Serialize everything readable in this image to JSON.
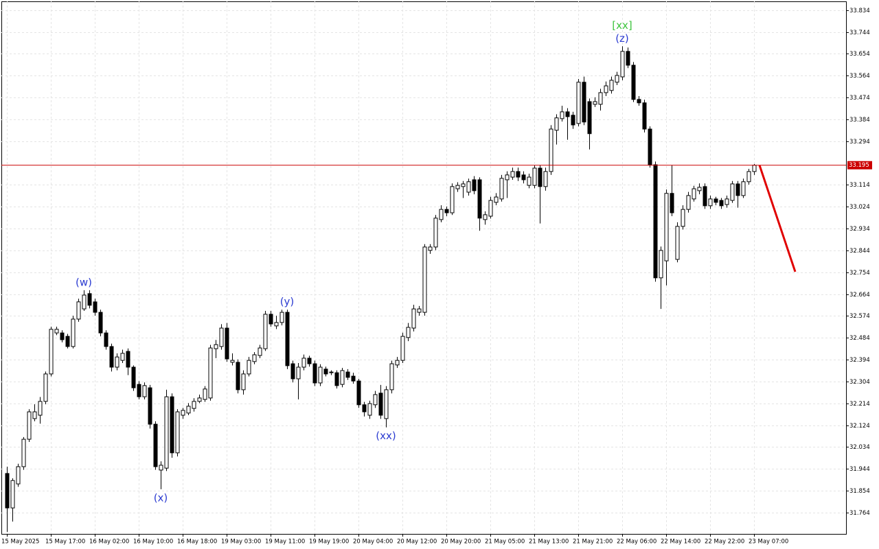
{
  "chart_data": {
    "type": "candlestick",
    "categories": [
      "15 May 2025",
      null,
      null,
      null,
      null,
      null,
      null,
      null,
      "15 May 17:00",
      null,
      null,
      null,
      null,
      null,
      null,
      null,
      "16 May 02:00",
      null,
      null,
      null,
      null,
      null,
      null,
      null,
      "16 May 10:00",
      null,
      null,
      null,
      null,
      null,
      null,
      null,
      "16 May 18:00",
      null,
      null,
      null,
      null,
      null,
      null,
      null,
      "19 May 03:00",
      null,
      null,
      null,
      null,
      null,
      null,
      null,
      "19 May 11:00",
      null,
      null,
      null,
      null,
      null,
      null,
      null,
      "19 May 19:00",
      null,
      null,
      null,
      null,
      null,
      null,
      null,
      "20 May 04:00",
      null,
      null,
      null,
      null,
      null,
      null,
      null,
      "20 May 12:00",
      null,
      null,
      null,
      null,
      null,
      null,
      null,
      "20 May 20:00",
      null,
      null,
      null,
      null,
      null,
      null,
      null,
      "21 May 05:00",
      null,
      null,
      null,
      null,
      null,
      null,
      null,
      "21 May 13:00",
      null,
      null,
      null,
      null,
      null,
      null,
      null,
      "21 May 21:00",
      null,
      null,
      null,
      null,
      null,
      null,
      null,
      "22 May 06:00",
      null,
      null,
      null,
      null,
      null,
      null,
      null,
      "22 May 14:00",
      null,
      null,
      null,
      null,
      null,
      null,
      null,
      "22 May 22:00",
      null,
      null,
      null,
      null,
      null,
      null,
      null,
      "23 May 07:00"
    ],
    "ohlc": [
      [
        31.925,
        31.953,
        31.684,
        31.783
      ],
      [
        31.783,
        31.905,
        31.727,
        31.896
      ],
      [
        31.882,
        31.965,
        31.87,
        31.953
      ],
      [
        31.953,
        32.075,
        31.94,
        32.066
      ],
      [
        32.066,
        32.19,
        32.055,
        32.179
      ],
      [
        32.151,
        32.21,
        32.14,
        32.179
      ],
      [
        32.165,
        32.24,
        32.13,
        32.222
      ],
      [
        32.222,
        32.345,
        32.21,
        32.335
      ],
      [
        32.335,
        32.53,
        32.325,
        32.519
      ],
      [
        32.504,
        32.53,
        32.495,
        32.519
      ],
      [
        32.504,
        32.515,
        32.465,
        32.476
      ],
      [
        32.49,
        32.5,
        32.44,
        32.448
      ],
      [
        32.448,
        32.575,
        32.44,
        32.561
      ],
      [
        32.561,
        32.645,
        32.55,
        32.632
      ],
      [
        32.603,
        32.68,
        32.595,
        32.66
      ],
      [
        32.666,
        32.68,
        32.605,
        32.618
      ],
      [
        32.632,
        32.645,
        32.575,
        32.589
      ],
      [
        32.589,
        32.6,
        32.49,
        32.504
      ],
      [
        32.504,
        32.515,
        32.435,
        32.448
      ],
      [
        32.448,
        32.46,
        32.345,
        32.363
      ],
      [
        32.363,
        32.42,
        32.35,
        32.405
      ],
      [
        32.391,
        32.435,
        32.38,
        32.42
      ],
      [
        32.428,
        32.44,
        32.33,
        32.363
      ],
      [
        32.363,
        32.37,
        32.265,
        32.278
      ],
      [
        32.292,
        32.305,
        32.23,
        32.241
      ],
      [
        32.241,
        32.3,
        32.23,
        32.287
      ],
      [
        32.278,
        32.29,
        32.11,
        32.128
      ],
      [
        32.128,
        32.14,
        31.94,
        31.953
      ],
      [
        31.939,
        31.975,
        31.86,
        31.959
      ],
      [
        31.947,
        32.27,
        31.935,
        32.241
      ],
      [
        32.241,
        32.255,
        31.99,
        32.01
      ],
      [
        32.01,
        32.19,
        31.995,
        32.179
      ],
      [
        32.165,
        32.195,
        32.15,
        32.185
      ],
      [
        32.174,
        32.215,
        32.165,
        32.202
      ],
      [
        32.193,
        32.235,
        32.18,
        32.222
      ],
      [
        32.222,
        32.25,
        32.215,
        32.236
      ],
      [
        32.23,
        32.285,
        32.22,
        32.273
      ],
      [
        32.236,
        32.455,
        32.225,
        32.442
      ],
      [
        32.439,
        32.475,
        32.4,
        32.456
      ],
      [
        32.448,
        32.54,
        32.435,
        32.524
      ],
      [
        32.524,
        32.545,
        32.385,
        32.397
      ],
      [
        32.383,
        32.42,
        32.37,
        32.391
      ],
      [
        32.383,
        32.395,
        32.255,
        32.27
      ],
      [
        32.27,
        32.35,
        32.25,
        32.335
      ],
      [
        32.335,
        32.405,
        32.325,
        32.391
      ],
      [
        32.386,
        32.425,
        32.375,
        32.414
      ],
      [
        32.411,
        32.455,
        32.4,
        32.442
      ],
      [
        32.439,
        32.595,
        32.43,
        32.581
      ],
      [
        32.581,
        32.595,
        32.53,
        32.541
      ],
      [
        32.533,
        32.575,
        32.52,
        32.547
      ],
      [
        32.547,
        32.6,
        32.535,
        32.589
      ],
      [
        32.589,
        32.6,
        32.355,
        32.369
      ],
      [
        32.377,
        32.39,
        32.3,
        32.315
      ],
      [
        32.315,
        32.38,
        32.23,
        32.363
      ],
      [
        32.363,
        32.415,
        32.35,
        32.4
      ],
      [
        32.4,
        32.41,
        32.365,
        32.377
      ],
      [
        32.377,
        32.39,
        32.285,
        32.298
      ],
      [
        32.298,
        32.375,
        32.285,
        32.363
      ],
      [
        32.355,
        32.365,
        32.325,
        32.335
      ],
      [
        32.34,
        32.35,
        32.33,
        32.343
      ],
      [
        32.34,
        32.35,
        32.275,
        32.287
      ],
      [
        32.292,
        32.36,
        32.28,
        32.349
      ],
      [
        32.343,
        32.355,
        32.31,
        32.321
      ],
      [
        32.326,
        32.34,
        32.295,
        32.306
      ],
      [
        32.306,
        32.315,
        32.195,
        32.208
      ],
      [
        32.208,
        32.22,
        32.16,
        32.179
      ],
      [
        32.165,
        32.225,
        32.15,
        32.213
      ],
      [
        32.208,
        32.265,
        32.195,
        32.25
      ],
      [
        32.256,
        32.29,
        32.15,
        32.165
      ],
      [
        32.151,
        32.285,
        32.115,
        32.27
      ],
      [
        32.27,
        32.39,
        32.255,
        32.377
      ],
      [
        32.372,
        32.405,
        32.36,
        32.391
      ],
      [
        32.391,
        32.505,
        32.38,
        32.49
      ],
      [
        32.485,
        32.545,
        32.47,
        32.527
      ],
      [
        32.524,
        32.62,
        32.51,
        32.603
      ],
      [
        32.589,
        32.615,
        32.575,
        32.603
      ],
      [
        32.589,
        32.87,
        32.575,
        32.858
      ],
      [
        32.844,
        32.87,
        32.83,
        32.858
      ],
      [
        32.858,
        32.99,
        32.845,
        32.977
      ],
      [
        32.971,
        33.03,
        32.96,
        33.013
      ],
      [
        33.013,
        33.025,
        32.985,
        32.999
      ],
      [
        32.999,
        33.12,
        32.99,
        33.107
      ],
      [
        33.098,
        33.125,
        33.085,
        33.112
      ],
      [
        33.107,
        33.13,
        33.06,
        33.118
      ],
      [
        33.084,
        33.14,
        33.07,
        33.127
      ],
      [
        33.135,
        33.15,
        33.075,
        33.09
      ],
      [
        33.135,
        33.145,
        32.925,
        32.977
      ],
      [
        32.971,
        33.005,
        32.95,
        32.991
      ],
      [
        32.985,
        33.065,
        32.975,
        33.05
      ],
      [
        33.042,
        33.08,
        33.03,
        33.064
      ],
      [
        33.056,
        33.155,
        33.045,
        33.141
      ],
      [
        33.135,
        33.17,
        33.06,
        33.155
      ],
      [
        33.146,
        33.185,
        33.135,
        33.169
      ],
      [
        33.169,
        33.185,
        33.13,
        33.146
      ],
      [
        33.155,
        33.17,
        33.12,
        33.135
      ],
      [
        33.112,
        33.16,
        33.1,
        33.146
      ],
      [
        33.112,
        33.195,
        33.1,
        33.183
      ],
      [
        33.183,
        33.195,
        32.955,
        33.107
      ],
      [
        33.107,
        33.185,
        33.09,
        33.169
      ],
      [
        33.169,
        33.36,
        33.155,
        33.344
      ],
      [
        33.339,
        33.405,
        33.28,
        33.39
      ],
      [
        33.387,
        33.44,
        33.375,
        33.415
      ],
      [
        33.415,
        33.43,
        33.3,
        33.395
      ],
      [
        33.401,
        33.415,
        33.345,
        33.361
      ],
      [
        33.367,
        33.55,
        33.355,
        33.537
      ],
      [
        33.537,
        33.56,
        33.36,
        33.373
      ],
      [
        33.457,
        33.47,
        33.26,
        33.325
      ],
      [
        33.446,
        33.475,
        33.435,
        33.457
      ],
      [
        33.446,
        33.51,
        33.42,
        33.494
      ],
      [
        33.494,
        33.54,
        33.48,
        33.522
      ],
      [
        33.503,
        33.56,
        33.49,
        33.545
      ],
      [
        33.537,
        33.58,
        33.525,
        33.565
      ],
      [
        33.559,
        33.685,
        33.545,
        33.664
      ],
      [
        33.664,
        33.68,
        33.595,
        33.607
      ],
      [
        33.607,
        33.62,
        33.455,
        33.466
      ],
      [
        33.466,
        33.48,
        33.44,
        33.452
      ],
      [
        33.452,
        33.465,
        33.33,
        33.344
      ],
      [
        33.344,
        33.355,
        33.185,
        33.197
      ],
      [
        33.197,
        33.21,
        32.715,
        32.731
      ],
      [
        32.731,
        32.86,
        32.603,
        32.844
      ],
      [
        32.801,
        33.095,
        32.7,
        33.079
      ],
      [
        33.079,
        33.195,
        32.985,
        32.999
      ],
      [
        32.807,
        32.96,
        32.795,
        32.943
      ],
      [
        32.943,
        33.03,
        32.93,
        33.013
      ],
      [
        33.013,
        33.085,
        33.0,
        33.07
      ],
      [
        33.056,
        33.11,
        33.045,
        33.098
      ],
      [
        33.09,
        33.12,
        33.075,
        33.104
      ],
      [
        33.107,
        33.12,
        33.015,
        33.028
      ],
      [
        33.028,
        33.07,
        33.015,
        33.056
      ],
      [
        33.056,
        33.065,
        33.03,
        33.042
      ],
      [
        33.05,
        33.06,
        33.015,
        33.028
      ],
      [
        33.033,
        33.07,
        33.02,
        33.056
      ],
      [
        33.05,
        33.13,
        33.04,
        33.118
      ],
      [
        33.118,
        33.13,
        33.02,
        33.07
      ],
      [
        33.07,
        33.14,
        33.06,
        33.127
      ],
      [
        33.127,
        33.18,
        33.115,
        33.169
      ],
      [
        33.169,
        33.2,
        33.155,
        33.195
      ]
    ],
    "ylim": [
      31.676,
      33.87
    ],
    "yticks": [
      33.834,
      33.744,
      33.654,
      33.564,
      33.474,
      33.384,
      33.294,
      33.114,
      33.024,
      32.934,
      32.844,
      32.754,
      32.664,
      32.574,
      32.484,
      32.394,
      32.304,
      32.214,
      32.124,
      32.034,
      31.944,
      31.854,
      31.764
    ],
    "grid": true,
    "current_price": 33.195,
    "current_price_color": "#cc0000",
    "bull_color": "#ffffff",
    "bear_color": "#000000",
    "forecast_values": [
      33.195,
      32.756
    ],
    "forecast_color": "#e00000",
    "annotations": [
      {
        "text": "(w)",
        "color": "#2b3bd1"
      },
      {
        "text": "(x)",
        "color": "#2b3bd1"
      },
      {
        "text": "(y)",
        "color": "#2b3bd1"
      },
      {
        "text": "(xx)",
        "color": "#2b3bd1"
      },
      {
        "text": "(z)",
        "color": "#2b3bd1"
      },
      {
        "text": "[xx]",
        "color": "#3cc43c"
      }
    ]
  }
}
